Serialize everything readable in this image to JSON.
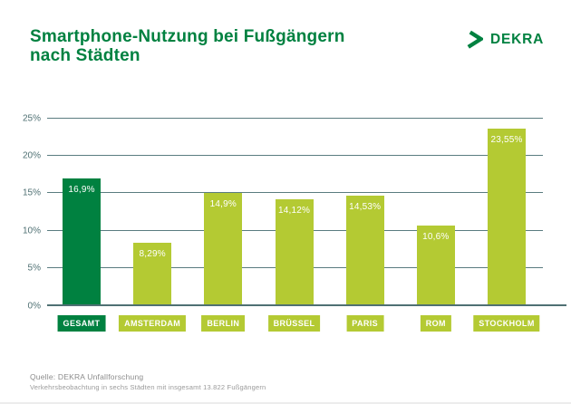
{
  "header": {
    "title_line1": "Smartphone-Nutzung bei Fußgängern",
    "title_line2": "nach Städten",
    "logo_text": "DEKRA"
  },
  "chart_data": {
    "type": "bar",
    "title": "Smartphone-Nutzung bei Fußgängern nach Städten",
    "categories": [
      "GESAMT",
      "AMSTERDAM",
      "BERLIN",
      "BRÜSSEL",
      "PARIS",
      "ROM",
      "STOCKHOLM"
    ],
    "values": [
      16.9,
      8.29,
      14.9,
      14.12,
      14.53,
      10.6,
      23.55
    ],
    "value_labels": [
      "16,9%",
      "8,29%",
      "14,9%",
      "14,12%",
      "14,53%",
      "10,6%",
      "23,55%"
    ],
    "xlabel": "",
    "ylabel": "",
    "ylim": [
      0,
      25
    ],
    "yticks": [
      25,
      20,
      15,
      10,
      5,
      0
    ],
    "ytick_labels": [
      "25%",
      "20%",
      "15%",
      "10%",
      "5%",
      "0%"
    ],
    "grid": true,
    "legend": false,
    "highlight_category": "GESAMT",
    "highlight_index": 0
  },
  "footer": {
    "source": "Quelle: DEKRA Unfallforschung",
    "note": "Verkehrsbeobachtung in sechs Städten mit insgesamt 13.822 Fußgängern"
  },
  "colors": {
    "brand_green": "#008140",
    "bar_highlight": "#008140",
    "bar_default": "#b4ca33",
    "axis": "#4f7073",
    "grid": "#5a7c80",
    "value_text": "#ffffff",
    "source_text": "#8c8c8c"
  }
}
